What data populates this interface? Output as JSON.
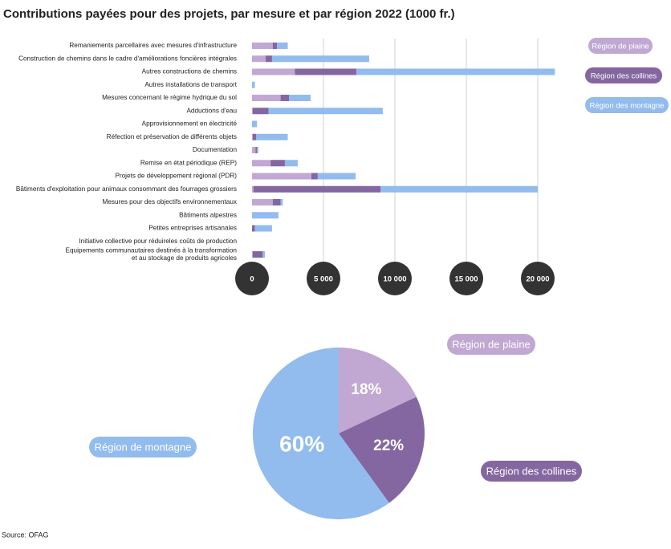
{
  "source": "Source: OFAG",
  "chart_data": [
    {
      "type": "stacked-barh",
      "title": "Contributions payées pour des projets, par mesure et par région 2022 (1000 fr.)",
      "categories": [
        "Remaniements parcellaires avec mesures d'infrastructure",
        "Construction de chemins dans le cadre d'améliorations foncières intégrales",
        "Autres constructions de chemins",
        "Autres installations de transport",
        "Mesures concernant le régime hydrique du sol",
        "Adductions d'eau",
        "Approvisionnement en électricité",
        "Réfection et préservation de différents objets",
        "Documentation",
        "Remise en état périodique (REP)",
        "Projets de développement régional (PDR)",
        "Bâtiments d'exploitation pour animaux consommant des fourrages grossiers",
        "Mesures pour des objectifs environnementaux",
        "Bâtiments alpestres",
        "Petites entreprises artisanales",
        "Initiative collective pour réduireles coûts de production",
        "Equipements communautaires destinés à la transformation\net au stockage de produits agricoles"
      ],
      "series": [
        {
          "name": "Région de plaine",
          "color": "#c0a8d3",
          "values": [
            1450,
            950,
            3000,
            0,
            2000,
            50,
            0,
            50,
            250,
            1300,
            4150,
            100,
            1450,
            0,
            0,
            0,
            50
          ]
        },
        {
          "name": "Région des collines",
          "color": "#8466a0",
          "values": [
            300,
            450,
            4300,
            0,
            600,
            1100,
            0,
            250,
            100,
            1000,
            450,
            8900,
            550,
            0,
            200,
            0,
            700
          ]
        },
        {
          "name": "Région des montagne",
          "color": "#92bbee",
          "values": [
            750,
            6800,
            13900,
            200,
            1500,
            8000,
            350,
            2200,
            100,
            900,
            2650,
            11000,
            150,
            1850,
            1200,
            0,
            150
          ]
        }
      ],
      "xlim": [
        0,
        22000
      ],
      "xticks": [
        0,
        {
          "value": 5000,
          "label": "5 000"
        },
        {
          "value": 10000,
          "label": "10 000"
        },
        {
          "value": 15000,
          "label": "15 000"
        },
        {
          "value": 20000,
          "label": "20 000"
        }
      ],
      "grid": true,
      "legend": "top-right"
    },
    {
      "type": "pie",
      "categories": [
        "Région de plaine",
        "Région des collines",
        "Région de montagne"
      ],
      "values": [
        18,
        22,
        60
      ],
      "value_labels": [
        "18%",
        "22%",
        "60%"
      ],
      "colors": [
        "#c0a8d3",
        "#8466a0",
        "#92bbee"
      ]
    }
  ]
}
